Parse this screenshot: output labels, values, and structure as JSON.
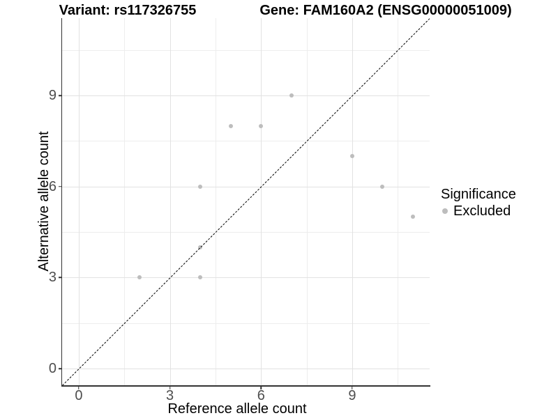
{
  "header": {
    "variant_title": "Variant: rs117326755",
    "gene_title": "Gene: FAM160A2 (ENSG00000051009)"
  },
  "chart_data": {
    "type": "scatter",
    "title_left": "Variant: rs117326755",
    "title_right": "Gene: FAM160A2 (ENSG00000051009)",
    "xlabel": "Reference allele count",
    "ylabel": "Alternative allele count",
    "xlim": [
      -0.55,
      11.55
    ],
    "ylim": [
      -0.55,
      11.55
    ],
    "x_ticks": [
      0,
      3,
      6,
      9
    ],
    "y_ticks": [
      0,
      3,
      6,
      9
    ],
    "x_minor_ticks": [
      1.5,
      4.5,
      7.5,
      10.5
    ],
    "y_minor_ticks": [
      1.5,
      4.5,
      7.5,
      10.5
    ],
    "grid": true,
    "points": [
      {
        "x": 2,
        "y": 3
      },
      {
        "x": 4,
        "y": 3
      },
      {
        "x": 4,
        "y": 4
      },
      {
        "x": 4,
        "y": 6
      },
      {
        "x": 5,
        "y": 8
      },
      {
        "x": 6,
        "y": 8
      },
      {
        "x": 7,
        "y": 9
      },
      {
        "x": 9,
        "y": 7
      },
      {
        "x": 10,
        "y": 6
      },
      {
        "x": 11,
        "y": 5
      }
    ],
    "identity_line": {
      "style": "dashed",
      "slope": 1,
      "intercept": 0,
      "color": "#000000"
    },
    "legend": {
      "position": "right",
      "title": "Significance",
      "items": [
        {
          "label": "Excluded",
          "color": "#bdbdbd"
        }
      ]
    },
    "colors": {
      "point": "#bdbdbd",
      "grid_major": "#e2e2e2",
      "grid_minor": "#ededed",
      "axis": "#333333",
      "tick_label": "#4d4d4d"
    }
  }
}
